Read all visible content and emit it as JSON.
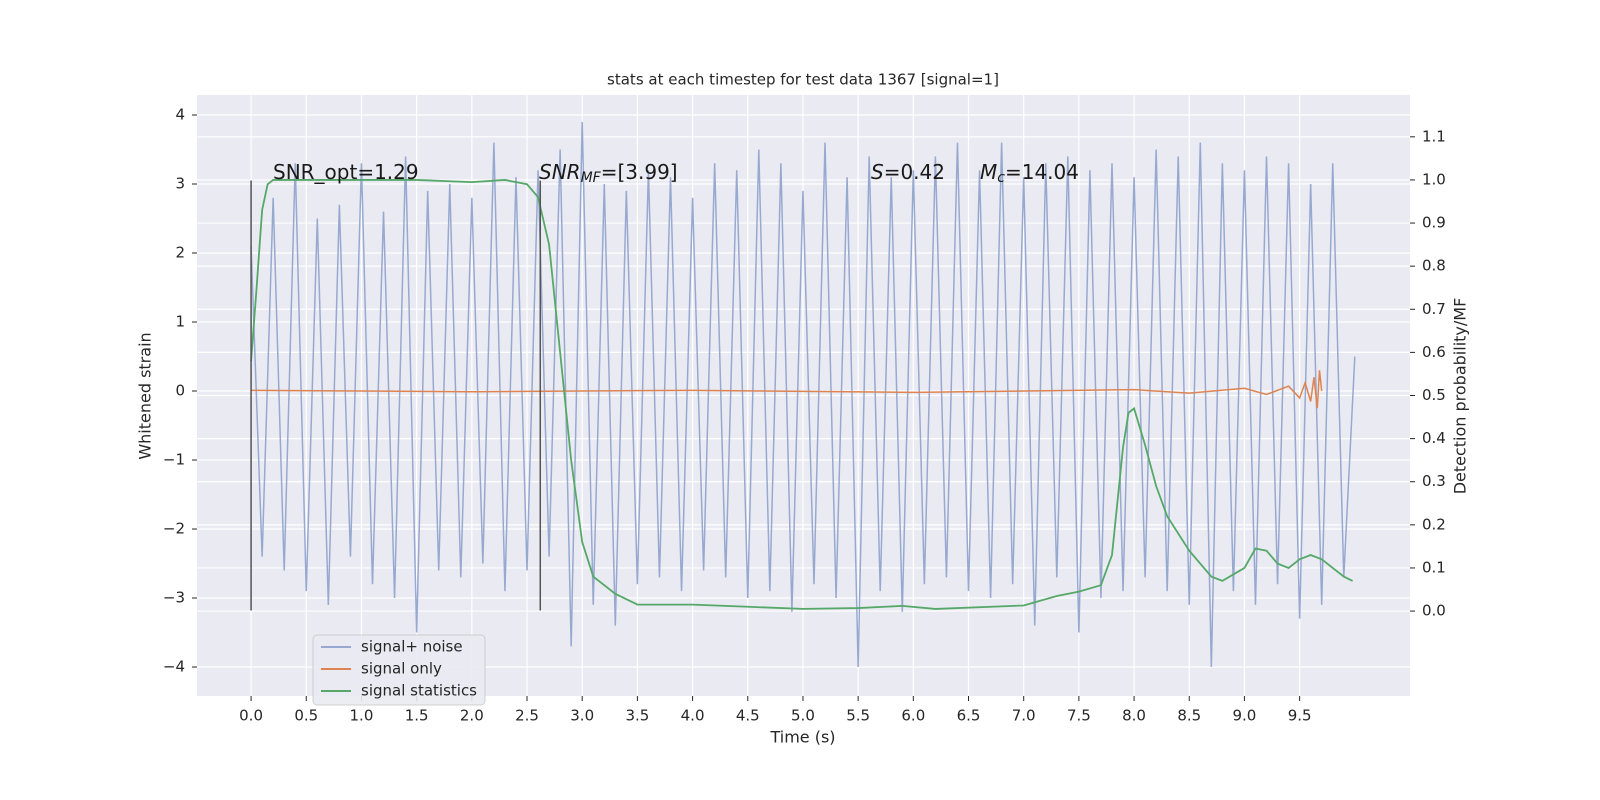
{
  "chart_data": {
    "type": "line",
    "title": "stats at each timestep for test data 1367 [signal=1]",
    "x_label": "Time (s)",
    "y_label": "Whitened strain",
    "y2_label": "Detection probability/MF",
    "grid": true,
    "legend": "lower left",
    "xlim": [
      -0.49,
      10.5
    ],
    "ylim": [
      -4.42,
      4.29
    ],
    "y2lim": [
      -0.197,
      1.197
    ],
    "xticks": [
      {
        "value": 0,
        "label": "0.0"
      },
      {
        "value": 0.5,
        "label": "0.5"
      },
      {
        "value": 1,
        "label": "1.0"
      },
      {
        "value": 1.5,
        "label": "1.5"
      },
      {
        "value": 2,
        "label": "2.0"
      },
      {
        "value": 2.5,
        "label": "2.5"
      },
      {
        "value": 3,
        "label": "3.0"
      },
      {
        "value": 3.5,
        "label": "3.5"
      },
      {
        "value": 4,
        "label": "4.0"
      },
      {
        "value": 4.5,
        "label": "4.5"
      },
      {
        "value": 5,
        "label": "5.0"
      },
      {
        "value": 5.5,
        "label": "5.5"
      },
      {
        "value": 6,
        "label": "6.0"
      },
      {
        "value": 6.5,
        "label": "6.5"
      },
      {
        "value": 7,
        "label": "7.0"
      },
      {
        "value": 7.5,
        "label": "7.5"
      },
      {
        "value": 8,
        "label": "8.0"
      },
      {
        "value": 8.5,
        "label": "8.5"
      },
      {
        "value": 9,
        "label": "9.0"
      },
      {
        "value": 9.5,
        "label": "9.5"
      }
    ],
    "yticks": [
      {
        "value": -4,
        "label": "−4"
      },
      {
        "value": -3,
        "label": "−3"
      },
      {
        "value": -2,
        "label": "−2"
      },
      {
        "value": -1,
        "label": "−1"
      },
      0,
      1,
      2,
      3,
      4
    ],
    "y2ticks": [
      {
        "value": 0,
        "label": "0.0"
      },
      {
        "value": 0.1,
        "label": "0.1"
      },
      {
        "value": 0.2,
        "label": "0.2"
      },
      {
        "value": 0.3,
        "label": "0.3"
      },
      {
        "value": 0.4,
        "label": "0.4"
      },
      {
        "value": 0.5,
        "label": "0.5"
      },
      {
        "value": 0.6,
        "label": "0.6"
      },
      {
        "value": 0.7,
        "label": "0.7"
      },
      {
        "value": 0.8,
        "label": "0.8"
      },
      {
        "value": 0.9,
        "label": "0.9"
      },
      {
        "value": 1,
        "label": "1.0"
      },
      {
        "value": 1.1,
        "label": "1.1"
      }
    ],
    "vlines": [
      0,
      2.62
    ],
    "annotations": [
      [
        {
          "text": "SNR_opt=1.29",
          "style": "normal"
        }
      ],
      [
        {
          "text": "SNR",
          "style": "italic"
        },
        {
          "text": "MF",
          "style": "sub"
        },
        {
          "text": "=[3.99]",
          "style": "normal"
        }
      ],
      [
        {
          "text": "S",
          "style": "italic"
        },
        {
          "text": "=0.42",
          "style": "normal"
        }
      ],
      [
        {
          "text": "M",
          "style": "italic"
        },
        {
          "text": "c",
          "style": "sub"
        },
        {
          "text": "=14.04",
          "style": "normal"
        }
      ]
    ],
    "series": [
      {
        "name": "signal+ noise",
        "color": "#98a9d0",
        "x": [
          0,
          0.1,
          0.2,
          0.3,
          0.4,
          0.5,
          0.6,
          0.7,
          0.8,
          0.9,
          1,
          1.1,
          1.2,
          1.3,
          1.4,
          1.5,
          1.6,
          1.7,
          1.8,
          1.9,
          2,
          2.1,
          2.2,
          2.3,
          2.4,
          2.5,
          2.6,
          2.7,
          2.8,
          2.9,
          3,
          3.1,
          3.2,
          3.3,
          3.4,
          3.5,
          3.6,
          3.7,
          3.8,
          3.9,
          4,
          4.1,
          4.2,
          4.3,
          4.4,
          4.5,
          4.6,
          4.7,
          4.8,
          4.9,
          5,
          5.1,
          5.2,
          5.3,
          5.4,
          5.5,
          5.6,
          5.7,
          5.8,
          5.9,
          6,
          6.1,
          6.2,
          6.3,
          6.4,
          6.5,
          6.6,
          6.7,
          6.8,
          6.9,
          7,
          7.1,
          7.2,
          7.3,
          7.4,
          7.5,
          7.6,
          7.7,
          7.8,
          7.9,
          8,
          8.1,
          8.2,
          8.3,
          8.4,
          8.5,
          8.6,
          8.7,
          8.8,
          8.9,
          9,
          9.1,
          9.2,
          9.3,
          9.4,
          9.5,
          9.6,
          9.7,
          9.8,
          9.9,
          10
        ],
        "values": [
          2.1,
          -2.4,
          2.8,
          -2.6,
          3.3,
          -2.9,
          2.5,
          -3.1,
          2.7,
          -2.4,
          3.3,
          -2.8,
          2.6,
          -3.0,
          3.4,
          -3.5,
          2.9,
          -2.6,
          3.0,
          -2.7,
          2.8,
          -2.5,
          3.6,
          -2.9,
          3.1,
          -2.6,
          3.2,
          -2.4,
          3.5,
          -3.7,
          3.9,
          -3.1,
          3.0,
          -3.4,
          2.9,
          -2.8,
          3.2,
          -2.7,
          3.1,
          -2.9,
          2.8,
          -2.6,
          3.3,
          -2.7,
          3.2,
          -3.0,
          3.5,
          -2.9,
          3.3,
          -3.2,
          2.9,
          -2.8,
          3.6,
          -3.0,
          3.1,
          -4.0,
          3.4,
          -2.9,
          3.1,
          -3.2,
          3.2,
          -2.8,
          3.4,
          -2.7,
          3.6,
          -2.9,
          3.2,
          -3.0,
          3.6,
          -2.8,
          3.1,
          -3.4,
          3.3,
          -2.7,
          3.4,
          -3.5,
          3.2,
          -3.0,
          3.3,
          -2.9,
          3.1,
          -2.7,
          3.5,
          -2.9,
          3.4,
          -3.1,
          3.6,
          -4.0,
          3.3,
          -2.9,
          3.2,
          -3.1,
          3.4,
          -2.8,
          3.3,
          -3.3,
          3.0,
          -3.1,
          3.3,
          -2.7,
          0.5
        ]
      },
      {
        "name": "signal only",
        "color": "#dd8452",
        "x": [
          0,
          2,
          4,
          6,
          8,
          8.5,
          9,
          9.2,
          9.4,
          9.5,
          9.55,
          9.6,
          9.63,
          9.66,
          9.68,
          9.7
        ],
        "values": [
          0.01,
          -0.01,
          0.01,
          -0.02,
          0.02,
          -0.03,
          0.04,
          -0.05,
          0.07,
          -0.1,
          0.12,
          -0.15,
          0.2,
          -0.25,
          0.3,
          0
        ]
      },
      {
        "name": "signal statistics",
        "color": "#55a868",
        "axis": "y2",
        "x": [
          0,
          0.05,
          0.1,
          0.15,
          0.2,
          0.5,
          1,
          1.5,
          2,
          2.3,
          2.5,
          2.6,
          2.7,
          2.8,
          2.9,
          3.0,
          3.1,
          3.3,
          3.5,
          4,
          4.5,
          5,
          5.5,
          5.9,
          6.2,
          7,
          7.3,
          7.5,
          7.7,
          7.8,
          7.9,
          7.95,
          8.0,
          8.1,
          8.2,
          8.3,
          8.5,
          8.7,
          8.8,
          9.0,
          9.1,
          9.2,
          9.3,
          9.4,
          9.5,
          9.6,
          9.7,
          9.9,
          9.98
        ],
        "values": [
          0.58,
          0.75,
          0.93,
          0.99,
          1.0,
          1.0,
          1.0,
          1.0,
          0.995,
          1.0,
          0.99,
          0.96,
          0.85,
          0.6,
          0.35,
          0.16,
          0.08,
          0.04,
          0.015,
          0.015,
          0.01,
          0.005,
          0.007,
          0.012,
          0.005,
          0.013,
          0.035,
          0.045,
          0.06,
          0.13,
          0.38,
          0.46,
          0.47,
          0.385,
          0.29,
          0.22,
          0.14,
          0.08,
          0.07,
          0.1,
          0.145,
          0.14,
          0.11,
          0.1,
          0.12,
          0.13,
          0.12,
          0.08,
          0.07
        ]
      }
    ]
  }
}
